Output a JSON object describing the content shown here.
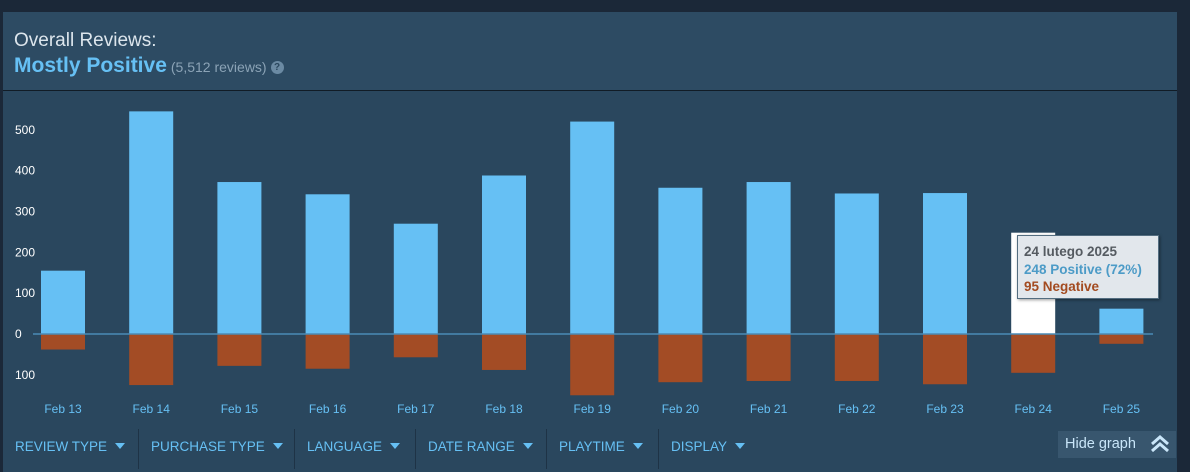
{
  "header": {
    "overall_label": "Overall Reviews:",
    "summary": "Mostly Positive",
    "count": "(5,512 reviews)",
    "help": "?"
  },
  "chart_data": {
    "type": "bar",
    "categories": [
      "Feb 13",
      "Feb 14",
      "Feb 15",
      "Feb 16",
      "Feb 17",
      "Feb 18",
      "Feb 19",
      "Feb 20",
      "Feb 21",
      "Feb 22",
      "Feb 23",
      "Feb 24",
      "Feb 25"
    ],
    "series": [
      {
        "name": "Positive",
        "values": [
          155,
          545,
          372,
          342,
          270,
          388,
          520,
          358,
          372,
          344,
          345,
          248,
          62
        ],
        "color": "#66c0f4"
      },
      {
        "name": "Negative",
        "values": [
          38,
          125,
          78,
          85,
          57,
          88,
          150,
          118,
          115,
          115,
          123,
          95,
          24
        ],
        "color": "#a34c25"
      }
    ],
    "highlight_index": 11,
    "highlight_color": "#ffffff",
    "yticks": [
      {
        "value": 500,
        "label": "500"
      },
      {
        "value": 400,
        "label": "400"
      },
      {
        "value": 300,
        "label": "300"
      },
      {
        "value": 200,
        "label": "200"
      },
      {
        "value": 100,
        "label": "100"
      },
      {
        "value": 0,
        "label": "0"
      },
      {
        "value": -100,
        "label": "100"
      }
    ],
    "ylim": [
      -160,
      580
    ],
    "baseline_color": "#4b8bb5"
  },
  "tooltip": {
    "date": "24 lutego 2025",
    "positive": "248 Positive (72%)",
    "negative": "95 Negative"
  },
  "filters": [
    "REVIEW TYPE",
    "PURCHASE TYPE",
    "LANGUAGE",
    "DATE RANGE",
    "PLAYTIME",
    "DISPLAY"
  ],
  "hide_graph_label": "Hide graph"
}
